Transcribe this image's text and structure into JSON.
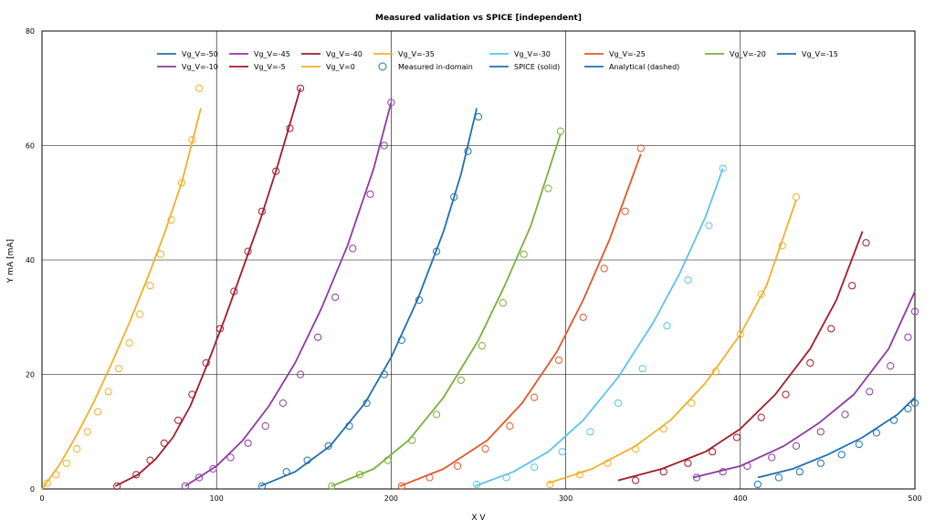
{
  "chart_data": {
    "type": "line",
    "title": "Measured validation vs SPICE [independent]",
    "xlabel": "X V",
    "ylabel": "Y mA [mA]",
    "xlim": [
      0,
      500
    ],
    "ylim": [
      0,
      80
    ],
    "xticks": [
      0,
      100,
      200,
      300,
      400,
      500
    ],
    "yticks": [
      0,
      20,
      40,
      60,
      80
    ],
    "grid": true,
    "legend_position": "top",
    "legend": [
      {
        "label": "Vg_V=-50",
        "color": "#1f6fb2",
        "kind": "line"
      },
      {
        "label": "Vg_V=-45",
        "color": "#8e3aa0",
        "kind": "line"
      },
      {
        "label": "Vg_V=-40",
        "color": "#a31a2a",
        "kind": "line"
      },
      {
        "label": "Vg_V=-35",
        "color": "#f0b02a",
        "kind": "line"
      },
      {
        "label": "Vg_V=-30",
        "color": "#5bc4e8",
        "kind": "line"
      },
      {
        "label": "Vg_V=-25",
        "color": "#e0572a",
        "kind": "line"
      },
      {
        "label": "Vg_V=-20",
        "color": "#7aaf3a",
        "kind": "line"
      },
      {
        "label": "Vg_V=-15",
        "color": "#1f6fb2",
        "kind": "line"
      },
      {
        "label": "Vg_V=-10",
        "color": "#8e3aa0",
        "kind": "line"
      },
      {
        "label": "Vg_V=-5",
        "color": "#a31a2a",
        "kind": "line"
      },
      {
        "label": "Vg_V=0",
        "color": "#f0b02a",
        "kind": "line"
      },
      {
        "label": "Measured in-domain",
        "color": "#1f6fb2",
        "kind": "marker"
      },
      {
        "label": "SPICE (solid)",
        "color": "#1f6fb2",
        "kind": "line"
      },
      {
        "label": "Analytical (dashed)",
        "color": "#1f6fb2",
        "kind": "line"
      }
    ],
    "series": [
      {
        "color": "#f0b02a",
        "x": [
          0,
          10,
          20,
          30,
          40,
          50,
          60,
          70,
          80,
          91
        ],
        "y": [
          0,
          4.2,
          9.5,
          15.4,
          22.0,
          29.0,
          36.5,
          44.5,
          53.5,
          66.5
        ]
      },
      {
        "color": "#a31a2a",
        "x": [
          42,
          55,
          65,
          75,
          85,
          95,
          105,
          115,
          125,
          135,
          148
        ],
        "y": [
          0.5,
          2.5,
          5.2,
          9.0,
          14.5,
          22.0,
          30.0,
          38.5,
          47.0,
          56.5,
          70.0
        ]
      },
      {
        "color": "#8e3aa0",
        "x": [
          82,
          100,
          115,
          130,
          145,
          160,
          175,
          190,
          200
        ],
        "y": [
          0.5,
          4.0,
          8.5,
          14.5,
          22.0,
          31.5,
          42.5,
          56.0,
          67.5
        ]
      },
      {
        "color": "#1f6fb2",
        "x": [
          125,
          145,
          165,
          185,
          200,
          215,
          230,
          240,
          249
        ],
        "y": [
          0.5,
          3.0,
          7.5,
          15.0,
          23.0,
          33.0,
          45.0,
          55.0,
          66.5
        ]
      },
      {
        "color": "#7aaf3a",
        "x": [
          166,
          190,
          210,
          230,
          250,
          265,
          280,
          297
        ],
        "y": [
          0.5,
          3.5,
          8.5,
          16.0,
          26.0,
          35.5,
          46.0,
          62.0
        ]
      },
      {
        "color": "#e0572a",
        "x": [
          205,
          230,
          255,
          275,
          295,
          310,
          325,
          343
        ],
        "y": [
          0.5,
          3.5,
          8.5,
          15.0,
          24.0,
          33.0,
          43.5,
          58.5
        ]
      },
      {
        "color": "#5bc4e8",
        "x": [
          248,
          270,
          290,
          310,
          330,
          350,
          365,
          380,
          390
        ],
        "y": [
          0.5,
          3.0,
          6.5,
          12.0,
          19.5,
          29.0,
          37.5,
          47.5,
          56.0
        ]
      },
      {
        "color": "#f0b02a",
        "x": [
          290,
          315,
          340,
          360,
          380,
          400,
          415,
          432
        ],
        "y": [
          1.0,
          3.5,
          7.5,
          12.0,
          18.5,
          27.0,
          35.5,
          50.5
        ]
      },
      {
        "color": "#a31a2a",
        "x": [
          330,
          355,
          380,
          400,
          420,
          440,
          455,
          470
        ],
        "y": [
          1.5,
          3.5,
          6.5,
          10.5,
          16.5,
          24.5,
          33.0,
          45.0
        ]
      },
      {
        "color": "#8e3aa0",
        "x": [
          373,
          400,
          425,
          445,
          465,
          485,
          500
        ],
        "y": [
          2.0,
          4.0,
          7.5,
          11.5,
          16.5,
          24.5,
          34.5
        ]
      },
      {
        "color": "#1f6fb2",
        "x": [
          410,
          430,
          450,
          470,
          490,
          500
        ],
        "y": [
          2.0,
          3.5,
          6.0,
          9.0,
          13.0,
          16.0
        ]
      }
    ],
    "measured": [
      {
        "color": "#f0b02a",
        "x": [
          3,
          8,
          14,
          20,
          26,
          32,
          38,
          44,
          50,
          56,
          62,
          68,
          74,
          80,
          86,
          90
        ],
        "y": [
          1.0,
          2.5,
          4.5,
          7.0,
          10.0,
          13.5,
          17.0,
          21.0,
          25.5,
          30.5,
          35.5,
          41.0,
          47.0,
          53.5,
          61.0,
          70.0
        ]
      },
      {
        "color": "#a31a2a",
        "x": [
          43,
          54,
          62,
          70,
          78,
          86,
          94,
          102,
          110,
          118,
          126,
          134,
          142,
          148
        ],
        "y": [
          0.5,
          2.5,
          5.0,
          8.0,
          12.0,
          16.5,
          22.0,
          28.0,
          34.5,
          41.5,
          48.5,
          55.5,
          63.0,
          70.0
        ]
      },
      {
        "color": "#8e3aa0",
        "x": [
          82,
          90,
          98,
          108,
          118,
          128,
          138,
          148,
          158,
          168,
          178,
          188,
          196,
          200
        ],
        "y": [
          0.5,
          2.0,
          3.5,
          5.5,
          8.0,
          11.0,
          15.0,
          20.0,
          26.5,
          33.5,
          42.0,
          51.5,
          60.0,
          67.5
        ]
      },
      {
        "color": "#1f6fb2",
        "x": [
          126,
          140,
          152,
          164,
          176,
          186,
          196,
          206,
          216,
          226,
          236,
          244,
          250
        ],
        "y": [
          0.5,
          3.0,
          5.0,
          7.5,
          11.0,
          15.0,
          20.0,
          26.0,
          33.0,
          41.5,
          51.0,
          59.0,
          65.0
        ]
      },
      {
        "color": "#7aaf3a",
        "x": [
          166,
          182,
          198,
          212,
          226,
          240,
          252,
          264,
          276,
          290,
          297
        ],
        "y": [
          0.5,
          2.5,
          5.0,
          8.5,
          13.0,
          19.0,
          25.0,
          32.5,
          41.0,
          52.5,
          62.5
        ]
      },
      {
        "color": "#e0572a",
        "x": [
          206,
          222,
          238,
          254,
          268,
          282,
          296,
          310,
          322,
          334,
          343
        ],
        "y": [
          0.5,
          2.0,
          4.0,
          7.0,
          11.0,
          16.0,
          22.5,
          30.0,
          38.5,
          48.5,
          59.5
        ]
      },
      {
        "color": "#5bc4e8",
        "x": [
          249,
          266,
          282,
          298,
          314,
          330,
          344,
          358,
          370,
          382,
          390
        ],
        "y": [
          0.8,
          2.0,
          3.8,
          6.5,
          10.0,
          15.0,
          21.0,
          28.5,
          36.5,
          46.0,
          56.0
        ]
      },
      {
        "color": "#f0b02a",
        "x": [
          291,
          308,
          324,
          340,
          356,
          372,
          386,
          400,
          412,
          424,
          432
        ],
        "y": [
          0.8,
          2.5,
          4.5,
          7.0,
          10.5,
          15.0,
          20.5,
          27.0,
          34.0,
          42.5,
          51.0
        ]
      },
      {
        "color": "#a31a2a",
        "x": [
          340,
          356,
          370,
          384,
          398,
          412,
          426,
          440,
          452,
          464,
          472
        ],
        "y": [
          1.5,
          3.0,
          4.5,
          6.5,
          9.0,
          12.5,
          16.5,
          22.0,
          28.0,
          35.5,
          43.0
        ]
      },
      {
        "color": "#8e3aa0",
        "x": [
          375,
          390,
          404,
          418,
          432,
          446,
          460,
          474,
          486,
          496,
          500
        ],
        "y": [
          2.0,
          3.0,
          4.0,
          5.5,
          7.5,
          10.0,
          13.0,
          17.0,
          21.5,
          26.5,
          31.0
        ]
      },
      {
        "color": "#1f6fb2",
        "x": [
          410,
          422,
          434,
          446,
          458,
          468,
          478,
          488,
          496,
          500
        ],
        "y": [
          0.8,
          2.0,
          3.0,
          4.5,
          6.0,
          7.8,
          9.8,
          12.0,
          14.0,
          15.0
        ]
      }
    ]
  }
}
